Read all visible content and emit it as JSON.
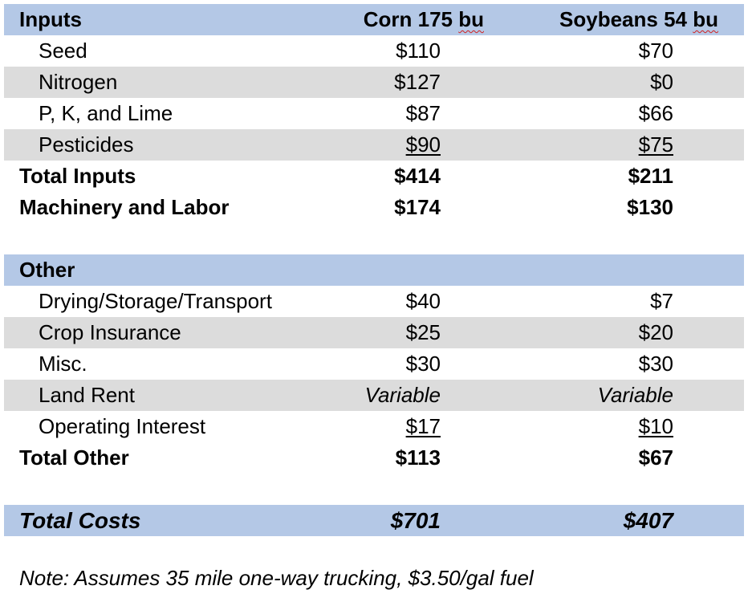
{
  "header": {
    "label": "Inputs",
    "corn_name": "Corn 175 ",
    "corn_unit": "bu",
    "soy_name": "Soybeans 54 ",
    "soy_unit": "bu"
  },
  "inputs": {
    "rows": [
      {
        "label": "Seed",
        "corn": "$110",
        "soy": "$70"
      },
      {
        "label": "Nitrogen",
        "corn": "$127",
        "soy": "$0"
      },
      {
        "label": "P, K, and Lime",
        "corn": "$87",
        "soy": "$66"
      },
      {
        "label": "Pesticides",
        "corn": "$90",
        "soy": "$75"
      }
    ],
    "total": {
      "label": "Total Inputs",
      "corn": "$414",
      "soy": "$211"
    },
    "machinery": {
      "label": "Machinery and Labor",
      "corn": "$174",
      "soy": "$130"
    }
  },
  "other": {
    "label": "Other",
    "rows": [
      {
        "label": "Drying/Storage/Transport",
        "corn": "$40",
        "soy": "$7"
      },
      {
        "label": "Crop Insurance",
        "corn": "$25",
        "soy": "$20"
      },
      {
        "label": "Misc.",
        "corn": "$30",
        "soy": "$30"
      },
      {
        "label": "Land Rent",
        "corn": "Variable",
        "soy": "Variable"
      },
      {
        "label": "Operating Interest",
        "corn": "$17",
        "soy": "$10"
      }
    ],
    "total": {
      "label": "Total Other",
      "corn": "$113",
      "soy": "$67"
    }
  },
  "total_costs": {
    "label": "Total Costs",
    "corn": "$701",
    "soy": "$407"
  },
  "note": "Note: Assumes 35 mile one-way trucking, $3.50/gal fuel",
  "colors": {
    "header_blue": "#b4c8e6",
    "stripe_gray": "#dcdcdc"
  }
}
